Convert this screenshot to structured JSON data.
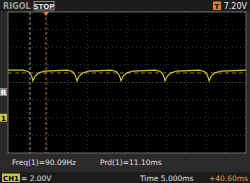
{
  "chart_data": {
    "type": "line",
    "color": "#c8c83c",
    "grid": true,
    "tick_labels": false,
    "xlim": [
      0,
      60
    ],
    "ylim": [
      -4,
      12
    ],
    "xticks": [
      0,
      5,
      10,
      15,
      20,
      25,
      30,
      35,
      40,
      45,
      50,
      55,
      60
    ],
    "yticks": [
      -4,
      -2,
      0,
      2,
      4,
      6,
      8,
      10,
      12
    ],
    "x": [
      0,
      3.8,
      5.1,
      5.9,
      6.3,
      6.8,
      7.8,
      9.3,
      14.9,
      16.2,
      17.0,
      17.4,
      17.9,
      18.9,
      20.4,
      26.0,
      27.3,
      28.1,
      28.5,
      29.0,
      30.0,
      31.5,
      37.1,
      38.4,
      39.2,
      39.6,
      40.1,
      41.1,
      42.6,
      48.2,
      49.5,
      50.3,
      50.7,
      51.2,
      52.2,
      53.7,
      60
    ],
    "values": [
      5.4,
      5.4,
      5.25,
      4.8,
      4.2,
      4.7,
      5.1,
      5.3,
      5.4,
      5.25,
      4.8,
      4.2,
      4.7,
      5.1,
      5.3,
      5.4,
      5.25,
      4.8,
      4.2,
      4.7,
      5.1,
      5.3,
      5.4,
      5.25,
      4.8,
      4.2,
      4.7,
      5.1,
      5.3,
      5.4,
      5.25,
      4.8,
      4.2,
      4.7,
      5.1,
      5.3,
      5.4
    ],
    "annotations": [
      "RIGOL",
      "STOP",
      "T",
      "7.20V",
      "1",
      "R",
      "Freq(1)=90.09Hz",
      "Prd(1)=11.10ms",
      "CH1",
      "= 2.00V",
      "Time 5.000ms",
      "+40.60ms"
    ]
  }
}
